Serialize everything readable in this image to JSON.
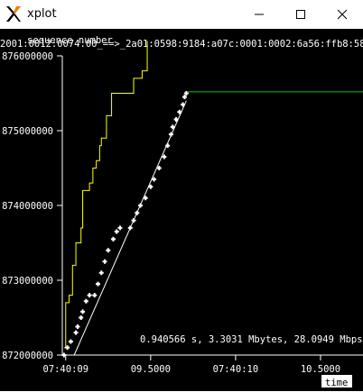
{
  "window": {
    "title": "xplot",
    "minimize_glyph": "—",
    "close_glyph": "✕"
  },
  "plot": {
    "header_text": "2001:0012:0074:00_==>_2a01:0598:9184:a07c:0001:0002:6a56:ffb8:5843",
    "status_text": "0.940566 s, 3.3031 Mbytes, 28.0949 Mbps",
    "colors": {
      "background": "#000000",
      "axis": "#ffffff",
      "yellow_series": "#ffff00",
      "green_series": "#00cc00",
      "white_series": "#ffffff"
    }
  },
  "chart_data": {
    "type": "scatter",
    "ylabel": "sequence number",
    "xlabel": "time",
    "ylim": [
      872000000,
      876000000
    ],
    "y_ticks": [
      "872000000",
      "873000000",
      "874000000",
      "875000000",
      "876000000"
    ],
    "x_ticks": [
      "07:40:09",
      "09.5000",
      "07:40:10",
      "10.5000"
    ],
    "x_tick_values": [
      9.0,
      9.5,
      10.0,
      10.5
    ],
    "xlim": [
      8.98,
      10.75
    ],
    "series": [
      {
        "color": "yellow",
        "points": [
          [
            8.99,
            872100000
          ],
          [
            9.0,
            872300000
          ],
          [
            9.0,
            872700000
          ],
          [
            9.02,
            872800000
          ],
          [
            9.04,
            873200000
          ],
          [
            9.06,
            873300000
          ],
          [
            9.06,
            873500000
          ],
          [
            9.09,
            873700000
          ],
          [
            9.1,
            874200000
          ],
          [
            9.14,
            874300000
          ],
          [
            9.16,
            874500000
          ],
          [
            9.18,
            874600000
          ],
          [
            9.2,
            874800000
          ],
          [
            9.21,
            874900000
          ],
          [
            9.24,
            875200000
          ],
          [
            9.27,
            875500000
          ],
          [
            9.35,
            875500000
          ],
          [
            9.4,
            875700000
          ],
          [
            9.45,
            875800000
          ],
          [
            9.48,
            876200000
          ]
        ]
      },
      {
        "color": "white",
        "points": [
          [
            8.99,
            872000000
          ],
          [
            9.01,
            872100000
          ],
          [
            9.03,
            872180000
          ],
          [
            9.06,
            872300000
          ],
          [
            9.07,
            872380000
          ],
          [
            9.09,
            872500000
          ],
          [
            9.1,
            872580000
          ],
          [
            9.12,
            872720000
          ],
          [
            9.14,
            872800000
          ],
          [
            9.17,
            872800000
          ],
          [
            9.19,
            872950000
          ],
          [
            9.21,
            873100000
          ],
          [
            9.23,
            873250000
          ],
          [
            9.25,
            873400000
          ],
          [
            9.28,
            873550000
          ],
          [
            9.3,
            873650000
          ],
          [
            9.32,
            873700000
          ],
          [
            9.38,
            873700000
          ],
          [
            9.4,
            873800000
          ],
          [
            9.42,
            873900000
          ],
          [
            9.44,
            874000000
          ],
          [
            9.47,
            874100000
          ],
          [
            9.5,
            874250000
          ],
          [
            9.52,
            874350000
          ],
          [
            9.55,
            874500000
          ],
          [
            9.58,
            874650000
          ],
          [
            9.6,
            874800000
          ],
          [
            9.62,
            874950000
          ],
          [
            9.63,
            875050000
          ],
          [
            9.65,
            875150000
          ],
          [
            9.67,
            875250000
          ],
          [
            9.69,
            875350000
          ],
          [
            9.7,
            875450000
          ],
          [
            9.71,
            875500000
          ]
        ]
      },
      {
        "color": "green",
        "points": [
          [
            9.72,
            875520000
          ],
          [
            10.75,
            875520000
          ]
        ]
      }
    ],
    "window_line": {
      "from": [
        9.05,
        872000000
      ],
      "to": [
        9.71,
        875400000
      ]
    }
  }
}
